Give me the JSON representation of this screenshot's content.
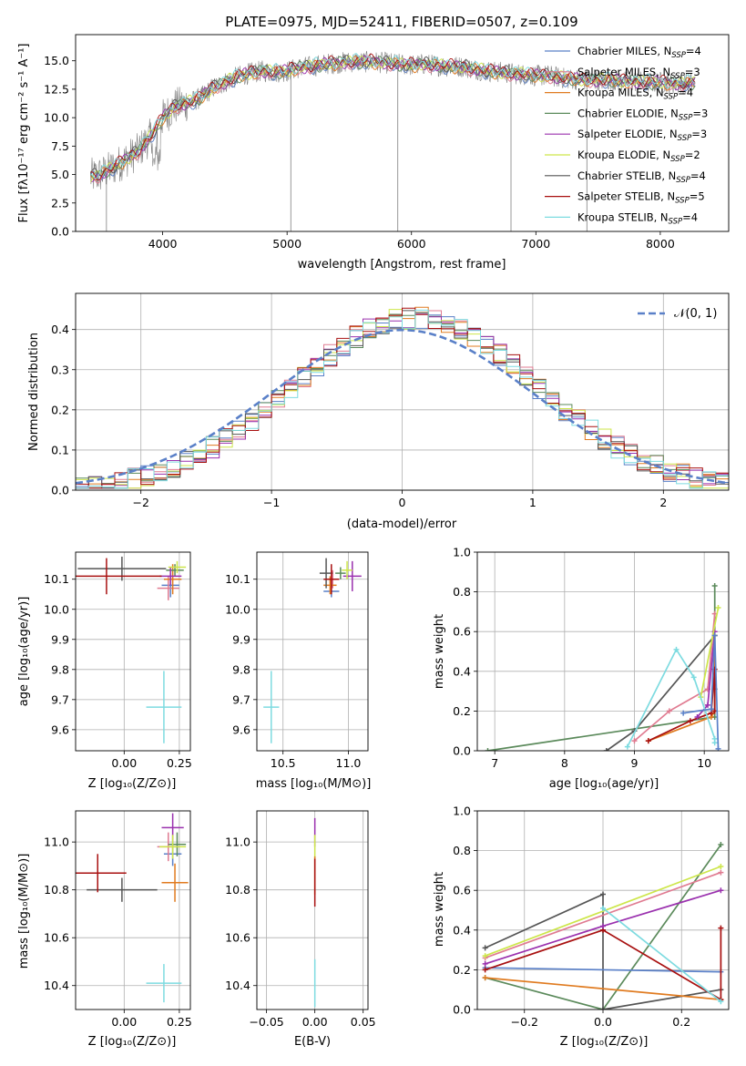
{
  "figure_title": "PLATE=0975, MJD=52411, FIBERID=0507, z=0.109",
  "colors": [
    "#5a80c8",
    "#e07b91",
    "#e07b20",
    "#5b8a5b",
    "#9a30ae",
    "#cde64a",
    "#555555",
    "#a81010",
    "#7ddbe0"
  ],
  "chart_data": [
    {
      "id": "spectrum",
      "type": "line",
      "title": "PLATE=0975, MJD=52411, FIBERID=0507, z=0.109",
      "xlabel": "wavelength [Angstrom, rest frame]",
      "ylabel": "Flux [fλ10⁻¹⁷ erg cm⁻² s⁻¹ A⁻¹]",
      "xlim": [
        3300,
        8550
      ],
      "ylim": [
        0,
        17.3
      ],
      "xticks": [
        4000,
        5000,
        6000,
        7000,
        8000
      ],
      "yticks": [
        0.0,
        2.5,
        5.0,
        7.5,
        10.0,
        12.5,
        15.0
      ],
      "ytick_labels": [
        "0.0",
        "2.5",
        "5.0",
        "7.5",
        "10.0",
        "12.5",
        "15.0"
      ],
      "legend_position": "top-right",
      "data_color": "#808080",
      "data_profile": {
        "x": [
          3420,
          3500,
          3600,
          3700,
          3800,
          3900,
          4000,
          4100,
          4200,
          4300,
          4400,
          4500,
          4600,
          4700,
          4800,
          4900,
          5000,
          5100,
          5200,
          5300,
          5400,
          5500,
          5600,
          5700,
          5800,
          5900,
          6000,
          6100,
          6200,
          6300,
          6400,
          6500,
          6600,
          6700,
          6800,
          6900,
          7000,
          7100,
          7200,
          7300,
          7400,
          7500,
          7600,
          7700,
          7800,
          7900,
          8000,
          8100,
          8200,
          8280
        ],
        "y": [
          4.8,
          5.0,
          5.6,
          6.3,
          7.0,
          8.3,
          10.0,
          11.0,
          11.3,
          11.7,
          12.6,
          13.1,
          13.6,
          13.9,
          14.1,
          14.0,
          14.1,
          14.4,
          14.5,
          14.7,
          14.8,
          14.9,
          14.9,
          14.9,
          14.8,
          14.7,
          14.6,
          14.7,
          14.6,
          14.5,
          14.5,
          14.3,
          14.1,
          14.0,
          13.9,
          13.8,
          13.7,
          13.7,
          13.5,
          13.4,
          13.3,
          13.3,
          13.3,
          13.2,
          13.2,
          13.1,
          13.1,
          13.0,
          13.0,
          13.1
        ]
      },
      "series": [
        {
          "name": "Chabrier MILES, N_SSP=4",
          "color": "#5a80c8"
        },
        {
          "name": "Salpeter MILES, N_SSP=3",
          "color": "#e07b91"
        },
        {
          "name": "Kroupa MILES, N_SSP=4",
          "color": "#e07b20"
        },
        {
          "name": "Chabrier ELODIE, N_SSP=3",
          "color": "#5b8a5b"
        },
        {
          "name": "Salpeter ELODIE, N_SSP=3",
          "color": "#9a30ae"
        },
        {
          "name": "Kroupa ELODIE, N_SSP=2",
          "color": "#cde64a"
        },
        {
          "name": "Chabrier STELIB, N_SSP=4",
          "color": "#555555"
        },
        {
          "name": "Salpeter STELIB, N_SSP=5",
          "color": "#a81010"
        },
        {
          "name": "Kroupa STELIB, N_SSP=4",
          "color": "#7ddbe0"
        }
      ],
      "legend_parts": [
        {
          "model": "Chabrier MILES, N",
          "n": "4"
        },
        {
          "model": "Salpeter MILES, N",
          "n": "3"
        },
        {
          "model": "Kroupa MILES, N",
          "n": "4"
        },
        {
          "model": "Chabrier ELODIE, N",
          "n": "3"
        },
        {
          "model": "Salpeter ELODIE, N",
          "n": "3"
        },
        {
          "model": "Kroupa ELODIE, N",
          "n": "2"
        },
        {
          "model": "Chabrier STELIB, N",
          "n": "4"
        },
        {
          "model": "Salpeter STELIB, N",
          "n": "5"
        },
        {
          "model": "Kroupa STELIB, N",
          "n": "4"
        }
      ],
      "legend_subscript": "SSP",
      "grid": false
    },
    {
      "id": "residuals",
      "type": "histogram",
      "xlabel": "(data-model)/error",
      "ylabel": "Normed distribution",
      "xlim": [
        -2.5,
        2.5
      ],
      "ylim": [
        0,
        0.49
      ],
      "xticks": [
        -2,
        -1,
        0,
        1,
        2
      ],
      "xtick_labels": [
        "−2",
        "−1",
        "0",
        "1",
        "2"
      ],
      "yticks": [
        0.0,
        0.1,
        0.2,
        0.3,
        0.4
      ],
      "ytick_labels": [
        "0.0",
        "0.1",
        "0.2",
        "0.3",
        "0.4"
      ],
      "bin_width": 0.1,
      "bin_start": -2.5,
      "reference_curve": {
        "label": "𝒩(0, 1)",
        "type": "normal",
        "mean": 0,
        "sigma": 1,
        "color": "#5a80c8",
        "style": "dashed"
      },
      "hist_profile_sigma": 0.93,
      "hist_profile_mean": 0.1,
      "series_colors": [
        "#5a80c8",
        "#e07b91",
        "#e07b20",
        "#5b8a5b",
        "#9a30ae",
        "#cde64a",
        "#555555",
        "#a81010",
        "#7ddbe0"
      ],
      "grid": true,
      "legend_position": "top-right"
    },
    {
      "id": "age-vs-Z",
      "type": "errorbar",
      "xlabel": "Z [log₁₀(Z/Z⊙)]",
      "ylabel": "age  [log₁₀(age/yr)]",
      "xlim": [
        -0.22,
        0.3
      ],
      "ylim": [
        9.53,
        10.19
      ],
      "xticks": [
        0.0,
        0.25
      ],
      "xtick_labels": [
        "0.00",
        "0.25"
      ],
      "yticks": [
        9.6,
        9.7,
        9.8,
        9.9,
        10.0,
        10.1
      ],
      "ytick_labels": [
        "9.6",
        "9.7",
        "9.8",
        "9.9",
        "10.0",
        "10.1"
      ],
      "points": [
        {
          "color": "#5a80c8",
          "x": 0.21,
          "y": 10.08,
          "xerr": 0.04,
          "yerr": 0.04
        },
        {
          "color": "#e07b91",
          "x": 0.2,
          "y": 10.07,
          "xerr": 0.05,
          "yerr": 0.04
        },
        {
          "color": "#e07b20",
          "x": 0.22,
          "y": 10.1,
          "xerr": 0.04,
          "yerr": 0.05
        },
        {
          "color": "#5b8a5b",
          "x": 0.23,
          "y": 10.13,
          "xerr": 0.04,
          "yerr": 0.02
        },
        {
          "color": "#9a30ae",
          "x": 0.21,
          "y": 10.11,
          "xerr": 0.05,
          "yerr": 0.03
        },
        {
          "color": "#cde64a",
          "x": 0.24,
          "y": 10.14,
          "xerr": 0.04,
          "yerr": 0.02
        },
        {
          "color": "#555555",
          "x": -0.01,
          "y": 10.135,
          "xerr": 0.2,
          "yerr": 0.04
        },
        {
          "color": "#a81010",
          "x": -0.08,
          "y": 10.11,
          "xerr": 0.25,
          "yerr": 0.06
        },
        {
          "color": "#7ddbe0",
          "x": 0.18,
          "y": 9.675,
          "xerr": 0.08,
          "yerr": 0.12
        }
      ],
      "grid": true
    },
    {
      "id": "age-vs-mass",
      "type": "errorbar",
      "xlabel": "mass [log₁₀(M/M⊙)]",
      "ylabel": "",
      "xlim": [
        10.3,
        11.15
      ],
      "ylim": [
        9.53,
        10.19
      ],
      "xticks": [
        10.5,
        11.0
      ],
      "xtick_labels": [
        "10.5",
        "11.0"
      ],
      "yticks": [
        9.6,
        9.7,
        9.8,
        9.9,
        10.0,
        10.1
      ],
      "ytick_labels": [
        "9.6",
        "9.7",
        "9.8",
        "9.9",
        "10.0",
        "10.1"
      ],
      "points": [
        {
          "color": "#5a80c8",
          "x": 10.87,
          "y": 10.06,
          "xerr": 0.06,
          "yerr": 0.02
        },
        {
          "color": "#e07b91",
          "x": 10.88,
          "y": 10.1,
          "xerr": 0.05,
          "yerr": 0.03
        },
        {
          "color": "#e07b20",
          "x": 10.86,
          "y": 10.08,
          "xerr": 0.05,
          "yerr": 0.03
        },
        {
          "color": "#5b8a5b",
          "x": 10.94,
          "y": 10.12,
          "xerr": 0.04,
          "yerr": 0.02
        },
        {
          "color": "#9a30ae",
          "x": 11.03,
          "y": 10.11,
          "xerr": 0.07,
          "yerr": 0.05
        },
        {
          "color": "#cde64a",
          "x": 10.99,
          "y": 10.13,
          "xerr": 0.04,
          "yerr": 0.03
        },
        {
          "color": "#555555",
          "x": 10.83,
          "y": 10.12,
          "xerr": 0.05,
          "yerr": 0.05
        },
        {
          "color": "#a81010",
          "x": 10.87,
          "y": 10.1,
          "xerr": 0.06,
          "yerr": 0.05
        },
        {
          "color": "#7ddbe0",
          "x": 10.41,
          "y": 9.675,
          "xerr": 0.06,
          "yerr": 0.12
        }
      ],
      "grid": true
    },
    {
      "id": "weight-vs-age",
      "type": "line",
      "xlabel": "age  [log₁₀(age/yr)]",
      "ylabel": "mass weight",
      "xlim": [
        6.75,
        10.35
      ],
      "ylim": [
        0,
        1
      ],
      "xticks": [
        7,
        8,
        9,
        10
      ],
      "xtick_labels": [
        "7",
        "8",
        "9",
        "10"
      ],
      "yticks": [
        0.0,
        0.2,
        0.4,
        0.6,
        0.8,
        1.0
      ],
      "ytick_labels": [
        "0.0",
        "0.2",
        "0.4",
        "0.6",
        "0.8",
        "1.0"
      ],
      "series": [
        {
          "color": "#5b8a5b",
          "x": [
            6.9,
            10.15,
            10.15
          ],
          "y": [
            0.0,
            0.17,
            0.83
          ]
        },
        {
          "color": "#555555",
          "x": [
            8.6,
            9.0,
            10.15,
            10.15
          ],
          "y": [
            0.0,
            0.1,
            0.58,
            0.31
          ]
        },
        {
          "color": "#e07b20",
          "x": [
            9.2,
            10.1,
            10.15,
            10.15
          ],
          "y": [
            0.05,
            0.17,
            0.2,
            0.58
          ]
        },
        {
          "color": "#a81010",
          "x": [
            9.2,
            9.8,
            10.1,
            10.15,
            10.15
          ],
          "y": [
            0.05,
            0.15,
            0.19,
            0.41,
            0.2
          ]
        },
        {
          "color": "#e07b91",
          "x": [
            9.0,
            9.5,
            10.05,
            10.15
          ],
          "y": [
            0.05,
            0.2,
            0.31,
            0.69
          ]
        },
        {
          "color": "#9a30ae",
          "x": [
            9.9,
            10.05,
            10.15
          ],
          "y": [
            0.17,
            0.23,
            0.6
          ]
        },
        {
          "color": "#cde64a",
          "x": [
            9.95,
            10.2
          ],
          "y": [
            0.27,
            0.72
          ]
        },
        {
          "color": "#7ddbe0",
          "x": [
            8.9,
            9.6,
            9.85,
            10.15,
            10.15
          ],
          "y": [
            0.02,
            0.51,
            0.37,
            0.06,
            0.04
          ]
        },
        {
          "color": "#5a80c8",
          "x": [
            9.7,
            10.1,
            10.15,
            10.2
          ],
          "y": [
            0.19,
            0.21,
            0.58,
            0.01
          ]
        }
      ],
      "grid": true
    },
    {
      "id": "mass-vs-Z",
      "type": "errorbar",
      "xlabel": "Z [log₁₀(Z/Z⊙)]",
      "ylabel": "mass [log₁₀(M/M⊙)]",
      "xlim": [
        -0.22,
        0.3
      ],
      "ylim": [
        10.3,
        11.13
      ],
      "xticks": [
        0.0,
        0.25
      ],
      "xtick_labels": [
        "0.00",
        "0.25"
      ],
      "yticks": [
        10.4,
        10.6,
        10.8,
        11.0
      ],
      "ytick_labels": [
        "10.4",
        "10.6",
        "10.8",
        "11.0"
      ],
      "points": [
        {
          "color": "#5a80c8",
          "x": 0.22,
          "y": 10.95,
          "xerr": 0.04,
          "yerr": 0.05
        },
        {
          "color": "#e07b91",
          "x": 0.2,
          "y": 10.98,
          "xerr": 0.05,
          "yerr": 0.06
        },
        {
          "color": "#e07b20",
          "x": 0.23,
          "y": 10.83,
          "xerr": 0.06,
          "yerr": 0.08
        },
        {
          "color": "#5b8a5b",
          "x": 0.24,
          "y": 10.99,
          "xerr": 0.04,
          "yerr": 0.05
        },
        {
          "color": "#9a30ae",
          "x": 0.22,
          "y": 11.06,
          "xerr": 0.05,
          "yerr": 0.06
        },
        {
          "color": "#cde64a",
          "x": 0.22,
          "y": 10.98,
          "xerr": 0.06,
          "yerr": 0.05
        },
        {
          "color": "#555555",
          "x": -0.01,
          "y": 10.8,
          "xerr": 0.16,
          "yerr": 0.05
        },
        {
          "color": "#a81010",
          "x": -0.12,
          "y": 10.87,
          "xerr": 0.13,
          "yerr": 0.08
        },
        {
          "color": "#7ddbe0",
          "x": 0.18,
          "y": 10.41,
          "xerr": 0.08,
          "yerr": 0.08
        }
      ],
      "grid": true
    },
    {
      "id": "mass-vs-EBV",
      "type": "errorbar",
      "xlabel": "E(B-V)",
      "ylabel": "",
      "xlim": [
        -0.06,
        0.055
      ],
      "ylim": [
        10.3,
        11.13
      ],
      "xticks": [
        -0.05,
        0.0,
        0.05
      ],
      "xtick_labels": [
        "−0.05",
        "0.00",
        "0.05"
      ],
      "yticks": [
        10.4,
        10.6,
        10.8,
        11.0
      ],
      "ytick_labels": [
        "10.4",
        "10.6",
        "10.8",
        "11.0"
      ],
      "points": [
        {
          "color": "#9a30ae",
          "x": 0.0,
          "y": 11.04,
          "xerr": 0.0,
          "yerr": 0.06
        },
        {
          "color": "#cde64a",
          "x": 0.0,
          "y": 10.98,
          "xerr": 0.0,
          "yerr": 0.05
        },
        {
          "color": "#e07b20",
          "x": 0.0,
          "y": 10.86,
          "xerr": 0.0,
          "yerr": 0.08
        },
        {
          "color": "#a81010",
          "x": 0.0,
          "y": 10.83,
          "xerr": 0.0,
          "yerr": 0.1
        },
        {
          "color": "#7ddbe0",
          "x": 0.0,
          "y": 10.41,
          "xerr": 0.0,
          "yerr": 0.1
        }
      ],
      "grid": true
    },
    {
      "id": "weight-vs-Z",
      "type": "line",
      "xlabel": "Z [log₁₀(Z/Z⊙)]",
      "ylabel": "mass weight",
      "xlim": [
        -0.32,
        0.32
      ],
      "ylim": [
        0,
        1
      ],
      "xticks": [
        -0.2,
        0.0,
        0.2
      ],
      "xtick_labels": [
        "−0.2",
        "0.0",
        "0.2"
      ],
      "yticks": [
        0.0,
        0.2,
        0.4,
        0.6,
        0.8,
        1.0
      ],
      "ytick_labels": [
        "0.0",
        "0.2",
        "0.4",
        "0.6",
        "0.8",
        "1.0"
      ],
      "series": [
        {
          "color": "#5b8a5b",
          "x": [
            -0.3,
            0.0,
            0.3
          ],
          "y": [
            0.16,
            0.0,
            0.83
          ]
        },
        {
          "color": "#555555",
          "x": [
            -0.3,
            0.0,
            0.0,
            0.3
          ],
          "y": [
            0.31,
            0.58,
            0.0,
            0.1
          ]
        },
        {
          "color": "#e07b20",
          "x": [
            -0.3,
            0.3
          ],
          "y": [
            0.16,
            0.05
          ]
        },
        {
          "color": "#5a80c8",
          "x": [
            -0.3,
            0.3
          ],
          "y": [
            0.21,
            0.19
          ]
        },
        {
          "color": "#a81010",
          "x": [
            -0.3,
            0.0,
            0.3,
            0.3
          ],
          "y": [
            0.2,
            0.4,
            0.05,
            0.41
          ]
        },
        {
          "color": "#9a30ae",
          "x": [
            -0.3,
            0.0,
            0.3
          ],
          "y": [
            0.23,
            0.42,
            0.6
          ]
        },
        {
          "color": "#e07b91",
          "x": [
            -0.3,
            0.3
          ],
          "y": [
            0.26,
            0.69
          ]
        },
        {
          "color": "#cde64a",
          "x": [
            -0.3,
            0.3
          ],
          "y": [
            0.27,
            0.72
          ]
        },
        {
          "color": "#7ddbe0",
          "x": [
            0.0,
            0.3
          ],
          "y": [
            0.51,
            0.04
          ]
        }
      ],
      "grid": true
    }
  ]
}
